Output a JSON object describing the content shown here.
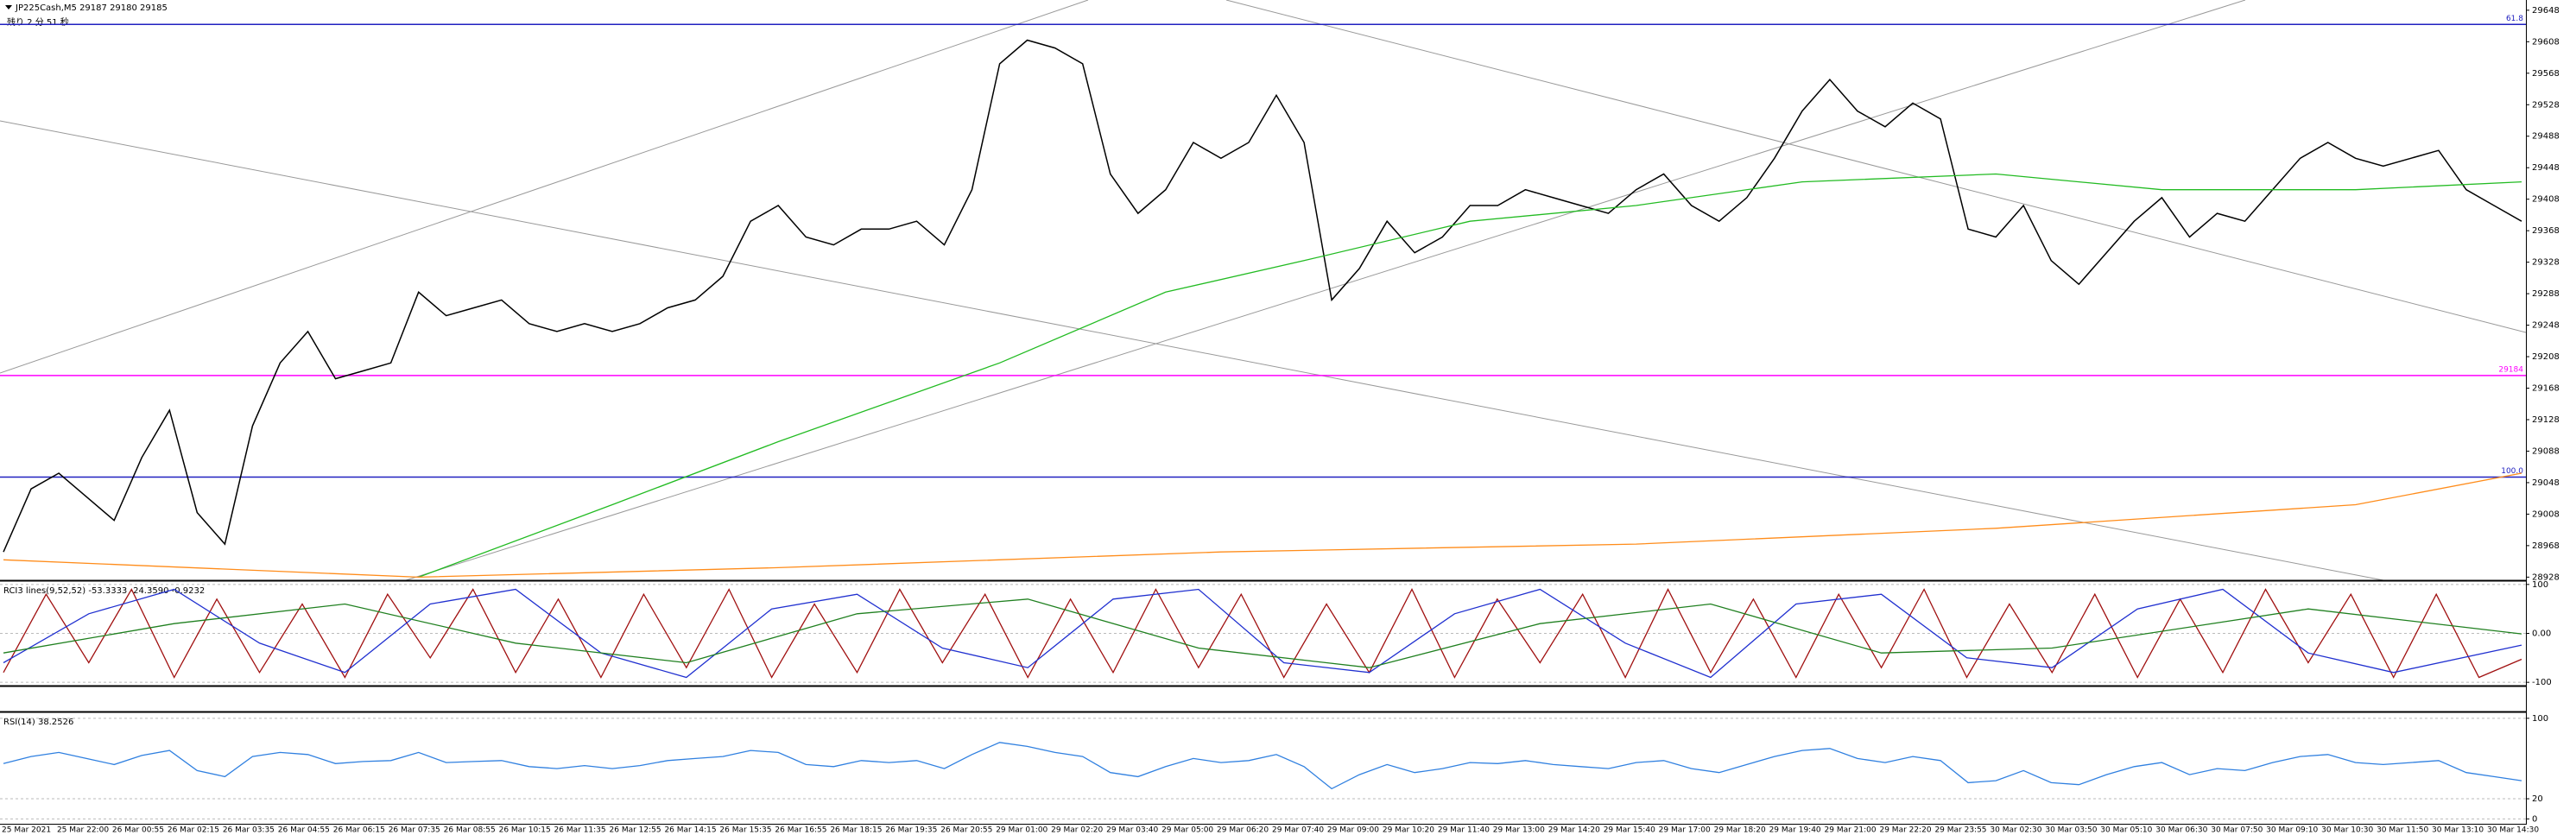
{
  "chart_data": [
    {
      "type": "line",
      "title": "JP225Cash,M5  29187 29180 29185",
      "subtitle": "残り 2 分 51 秒",
      "ylim": [
        28924,
        29661
      ],
      "yticks": [
        28928,
        28968,
        29008,
        29048,
        29088,
        29128,
        29168,
        29208,
        29248,
        29288,
        29328,
        29368,
        29408,
        29448,
        29488,
        29528,
        29568,
        29608,
        29648
      ],
      "grid": false,
      "levels": [
        {
          "name": "61.8",
          "value": 29630,
          "color": "#2020c0"
        },
        {
          "name": "100.0",
          "value": 29055,
          "color": "#2020c0"
        },
        {
          "name": "29184",
          "value": 29184,
          "color": "#ff00ff"
        }
      ],
      "time_labels": [
        "25 Mar 2021",
        "25 Mar 22:00",
        "26 Mar 00:55",
        "26 Mar 02:15",
        "26 Mar 03:35",
        "26 Mar 04:55",
        "26 Mar 06:15",
        "26 Mar 07:35",
        "26 Mar 08:55",
        "26 Mar 10:15",
        "26 Mar 11:35",
        "26 Mar 12:55",
        "26 Mar 14:15",
        "26 Mar 15:35",
        "26 Mar 16:55",
        "26 Mar 18:15",
        "26 Mar 19:35",
        "26 Mar 20:55",
        "29 Mar 01:00",
        "29 Mar 02:20",
        "29 Mar 03:40",
        "29 Mar 05:00",
        "29 Mar 06:20",
        "29 Mar 07:40",
        "29 Mar 09:00",
        "29 Mar 10:20",
        "29 Mar 11:40",
        "29 Mar 13:00",
        "29 Mar 14:20",
        "29 Mar 15:40",
        "29 Mar 17:00",
        "29 Mar 18:20",
        "29 Mar 19:40",
        "29 Mar 21:00",
        "29 Mar 22:20",
        "29 Mar 23:55",
        "30 Mar 02:30",
        "30 Mar 03:50",
        "30 Mar 05:10",
        "30 Mar 06:30",
        "30 Mar 07:50",
        "30 Mar 09:10",
        "30 Mar 10:30",
        "30 Mar 11:50",
        "30 Mar 13:10",
        "30 Mar 14:30"
      ],
      "xlim": [
        0,
        91
      ],
      "series": [
        {
          "color": "#000000",
          "x": [
            0,
            1,
            2,
            3,
            4,
            5,
            6,
            7,
            8,
            9,
            10,
            11,
            12,
            13,
            14,
            15,
            16,
            17,
            18,
            19,
            20,
            21,
            22,
            23,
            24,
            25,
            26,
            27,
            28,
            29,
            30,
            31,
            32,
            33,
            34,
            35,
            36,
            37,
            38,
            39,
            40,
            41,
            42,
            43,
            44,
            45,
            46,
            47,
            48,
            49,
            50,
            51,
            52,
            53,
            54,
            55,
            56,
            57,
            58,
            59,
            60,
            61,
            62,
            63,
            64,
            65,
            66,
            67,
            68,
            69,
            70,
            71,
            72,
            73,
            74,
            75,
            76,
            77,
            78,
            79,
            80,
            81,
            82,
            83,
            84,
            85,
            86,
            87,
            88,
            89,
            90,
            91
          ],
          "values": [
            28960,
            29040,
            29060,
            29030,
            29000,
            29080,
            29140,
            29010,
            28970,
            29120,
            29200,
            29240,
            29180,
            29190,
            29200,
            29290,
            29260,
            29270,
            29280,
            29250,
            29240,
            29250,
            29240,
            29250,
            29270,
            29280,
            29310,
            29380,
            29400,
            29360,
            29350,
            29370,
            29370,
            29380,
            29350,
            29420,
            29580,
            29610,
            29600,
            29580,
            29440,
            29390,
            29420,
            29480,
            29460,
            29480,
            29540,
            29480,
            29280,
            29320,
            29380,
            29340,
            29360,
            29400,
            29400,
            29420,
            29410,
            29400,
            29390,
            29420,
            29440,
            29400,
            29380,
            29410,
            29460,
            29520,
            29560,
            29520,
            29500,
            29530,
            29510,
            29370,
            29360,
            29400,
            29330,
            29300,
            29340,
            29380,
            29410,
            29360,
            29390,
            29380,
            29420,
            29460,
            29480,
            29460,
            29450,
            29460,
            29470,
            29420,
            29400,
            29380
          ]
        },
        {
          "color": "#22bb22",
          "x": [
            15,
            22,
            28,
            36,
            42,
            47,
            53,
            59,
            65,
            72,
            78,
            85,
            91
          ],
          "values": [
            28928,
            29020,
            29100,
            29200,
            29290,
            29330,
            29380,
            29400,
            29430,
            29440,
            29420,
            29420,
            29430
          ]
        },
        {
          "color": "#ff8c1a",
          "x": [
            0,
            15,
            28,
            44,
            59,
            72,
            85,
            91
          ],
          "values": [
            28950,
            28928,
            28940,
            28960,
            28970,
            28990,
            29020,
            29060
          ]
        }
      ]
    },
    {
      "type": "line",
      "title": "RCI3 lines(9,52,52) -53.3333 -24.3590 -0.9232",
      "ylim": [
        -105,
        105
      ],
      "yticks": [
        -100,
        {
          "value": 0,
          "label": "0.00"
        },
        100
      ],
      "xlim": [
        0,
        59
      ],
      "series": [
        {
          "color": "#a01010",
          "x": [
            0,
            1,
            2,
            3,
            4,
            5,
            6,
            7,
            8,
            9,
            10,
            11,
            12,
            13,
            14,
            15,
            16,
            17,
            18,
            19,
            20,
            21,
            22,
            23,
            24,
            25,
            26,
            27,
            28,
            29,
            30,
            31,
            32,
            33,
            34,
            35,
            36,
            37,
            38,
            39,
            40,
            41,
            42,
            43,
            44,
            45,
            46,
            47,
            48,
            49,
            50,
            51,
            52,
            53,
            54,
            55,
            56,
            57,
            58,
            59
          ],
          "values": [
            -80,
            80,
            -60,
            90,
            -90,
            70,
            -80,
            60,
            -90,
            80,
            -50,
            90,
            -80,
            70,
            -90,
            80,
            -70,
            90,
            -90,
            60,
            -80,
            90,
            -60,
            80,
            -90,
            70,
            -80,
            90,
            -70,
            80,
            -90,
            60,
            -80,
            90,
            -90,
            70,
            -60,
            80,
            -90,
            90,
            -80,
            70,
            -90,
            80,
            -70,
            90,
            -90,
            60,
            -80,
            80,
            -90,
            70,
            -80,
            90,
            -60,
            80,
            -90,
            80,
            -90,
            -53
          ]
        },
        {
          "color": "#2030d0",
          "x": [
            0,
            2,
            4,
            6,
            8,
            10,
            12,
            14,
            16,
            18,
            20,
            22,
            24,
            26,
            28,
            30,
            32,
            34,
            36,
            38,
            40,
            42,
            44,
            46,
            48,
            50,
            52,
            54,
            56,
            59
          ],
          "values": [
            -60,
            40,
            90,
            -20,
            -80,
            60,
            90,
            -40,
            -90,
            50,
            80,
            -30,
            -70,
            70,
            90,
            -60,
            -80,
            40,
            90,
            -20,
            -90,
            60,
            80,
            -50,
            -70,
            50,
            90,
            -40,
            -80,
            -24
          ]
        },
        {
          "color": "#208020",
          "x": [
            0,
            4,
            8,
            12,
            16,
            20,
            24,
            28,
            32,
            36,
            40,
            44,
            48,
            54,
            59
          ],
          "values": [
            -40,
            20,
            60,
            -20,
            -60,
            40,
            70,
            -30,
            -70,
            20,
            60,
            -40,
            -30,
            50,
            -1
          ]
        }
      ]
    },
    {
      "type": "line",
      "title": "RSI(14) 38.2526",
      "ylim": [
        -4,
        105
      ],
      "yticks": [
        0,
        20,
        100
      ],
      "xlim": [
        0,
        91
      ],
      "series": [
        {
          "color": "#3080e0",
          "x": [
            0,
            1,
            2,
            3,
            4,
            5,
            6,
            7,
            8,
            9,
            10,
            11,
            12,
            13,
            14,
            15,
            16,
            17,
            18,
            19,
            20,
            21,
            22,
            23,
            24,
            25,
            26,
            27,
            28,
            29,
            30,
            31,
            32,
            33,
            34,
            35,
            36,
            37,
            38,
            39,
            40,
            41,
            42,
            43,
            44,
            45,
            46,
            47,
            48,
            49,
            50,
            51,
            52,
            53,
            54,
            55,
            56,
            57,
            58,
            59,
            60,
            61,
            62,
            63,
            64,
            65,
            66,
            67,
            68,
            69,
            70,
            71,
            72,
            73,
            74,
            75,
            76,
            77,
            78,
            79,
            80,
            81,
            82,
            83,
            84,
            85,
            86,
            87,
            88,
            89,
            90,
            91
          ],
          "values": [
            55,
            62,
            66,
            60,
            54,
            63,
            68,
            48,
            42,
            62,
            66,
            64,
            55,
            57,
            58,
            66,
            56,
            57,
            58,
            52,
            50,
            53,
            50,
            53,
            58,
            60,
            62,
            68,
            66,
            54,
            52,
            58,
            56,
            58,
            50,
            64,
            76,
            72,
            66,
            62,
            46,
            42,
            52,
            60,
            56,
            58,
            64,
            52,
            30,
            44,
            54,
            46,
            50,
            56,
            55,
            58,
            54,
            52,
            50,
            56,
            58,
            50,
            46,
            54,
            62,
            68,
            70,
            60,
            56,
            62,
            58,
            36,
            38,
            48,
            36,
            34,
            44,
            52,
            56,
            44,
            50,
            48,
            56,
            62,
            64,
            56,
            54,
            56,
            58,
            46,
            42,
            38
          ]
        }
      ]
    }
  ]
}
